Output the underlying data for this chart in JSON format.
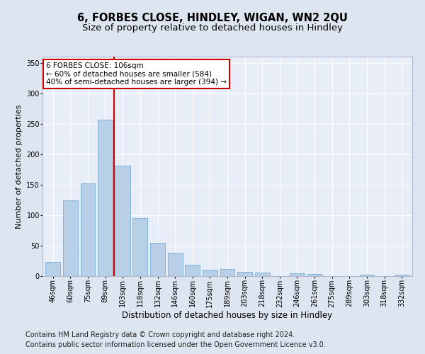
{
  "title1": "6, FORBES CLOSE, HINDLEY, WIGAN, WN2 2QU",
  "title2": "Size of property relative to detached houses in Hindley",
  "xlabel": "Distribution of detached houses by size in Hindley",
  "ylabel": "Number of detached properties",
  "categories": [
    "46sqm",
    "60sqm",
    "75sqm",
    "89sqm",
    "103sqm",
    "118sqm",
    "132sqm",
    "146sqm",
    "160sqm",
    "175sqm",
    "189sqm",
    "203sqm",
    "218sqm",
    "232sqm",
    "246sqm",
    "261sqm",
    "275sqm",
    "289sqm",
    "303sqm",
    "318sqm",
    "332sqm"
  ],
  "values": [
    23,
    124,
    152,
    257,
    181,
    95,
    55,
    38,
    19,
    10,
    12,
    7,
    6,
    0,
    5,
    4,
    0,
    0,
    2,
    0,
    2
  ],
  "bar_color": "#b8cfe8",
  "bar_edge_color": "#7aaed4",
  "annotation_text": "6 FORBES CLOSE: 106sqm\n← 60% of detached houses are smaller (584)\n40% of semi-detached houses are larger (394) →",
  "annotation_box_color": "white",
  "annotation_box_edge_color": "#cc0000",
  "vline_color": "#cc0000",
  "vline_x_index": 3.5,
  "ylim": [
    0,
    360
  ],
  "yticks": [
    0,
    50,
    100,
    150,
    200,
    250,
    300,
    350
  ],
  "bg_color": "#dde5f0",
  "plot_bg_color": "#e8eef8",
  "grid_color": "#ffffff",
  "footer1": "Contains HM Land Registry data © Crown copyright and database right 2024.",
  "footer2": "Contains public sector information licensed under the Open Government Licence v3.0.",
  "title1_fontsize": 10.5,
  "title2_fontsize": 9.5,
  "xlabel_fontsize": 8.5,
  "ylabel_fontsize": 8,
  "tick_fontsize": 7,
  "footer_fontsize": 7,
  "annotation_fontsize": 7.5
}
